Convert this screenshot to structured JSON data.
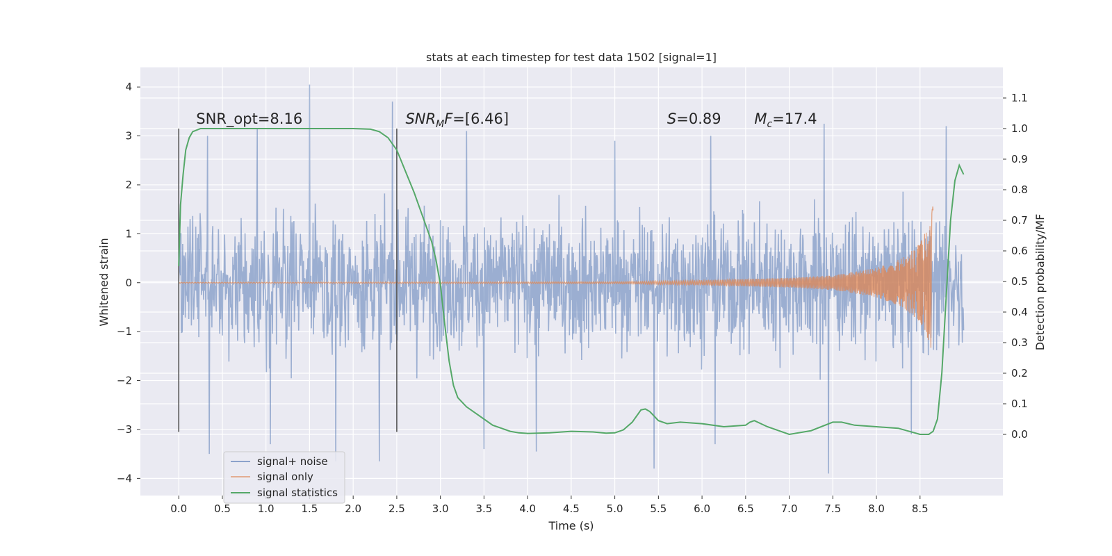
{
  "chart_data": {
    "type": "line",
    "title": "stats at each timestep for test data 1502 [signal=1]",
    "xlabel": "Time (s)",
    "ylabel": "Whitened strain",
    "ylabel_right": "Detection probability/MF",
    "xlim": [
      -0.44,
      9.45
    ],
    "ylim": [
      -4.35,
      4.4
    ],
    "ylim_right": [
      -0.2,
      1.2
    ],
    "x_ticks": [
      "0.0",
      "0.5",
      "1.0",
      "1.5",
      "2.0",
      "2.5",
      "3.0",
      "3.5",
      "4.0",
      "4.5",
      "5.0",
      "5.5",
      "6.0",
      "6.5",
      "7.0",
      "7.5",
      "8.0",
      "8.5"
    ],
    "y_ticks": [
      "4",
      "3",
      "2",
      "1",
      "0",
      "−1",
      "−2",
      "−3",
      "−4"
    ],
    "y_right_ticks": [
      "1.1",
      "1.0",
      "0.9",
      "0.8",
      "0.7",
      "0.6",
      "0.5",
      "0.4",
      "0.3",
      "0.2",
      "0.1",
      "0.0"
    ],
    "grid": true,
    "legend_position": "bottom-left",
    "annotations": [
      {
        "text": "SNR_opt=8.16",
        "x": 0.2,
        "y": 3.25
      },
      {
        "text": "=[6.46]",
        "math": "SNR",
        "sub": "M",
        "tail": "F",
        "x": 2.6,
        "y": 3.25
      },
      {
        "text": "=0.89",
        "math": "S",
        "x": 5.6,
        "y": 3.25
      },
      {
        "text": "=17.4",
        "math": "M",
        "sub": "c",
        "x": 6.6,
        "y": 3.25
      }
    ],
    "vertical_markers": [
      {
        "x": 0.0,
        "ymin": -3.05,
        "ymax": 3.15
      },
      {
        "x": 2.5,
        "ymin": -3.05,
        "ymax": 3.15
      }
    ],
    "series": [
      {
        "name": "signal+ noise",
        "color": "#4c72b0",
        "style": "noise",
        "x_range": [
          0.0,
          9.0
        ],
        "samples": 1800,
        "typical_amplitude": 1.3,
        "peaks": [
          [
            0.33,
            3.0
          ],
          [
            0.9,
            3.15
          ],
          [
            1.5,
            4.05
          ],
          [
            1.8,
            3.0
          ],
          [
            2.45,
            3.7
          ],
          [
            3.3,
            3.1
          ],
          [
            5.0,
            2.9
          ],
          [
            6.1,
            3.0
          ],
          [
            7.4,
            3.25
          ],
          [
            8.8,
            3.2
          ]
        ],
        "troughs": [
          [
            0.35,
            -3.5
          ],
          [
            1.05,
            -3.3
          ],
          [
            1.8,
            -3.65
          ],
          [
            2.3,
            -3.65
          ],
          [
            3.5,
            -3.4
          ],
          [
            4.1,
            -3.45
          ],
          [
            5.45,
            -3.8
          ],
          [
            6.15,
            -3.3
          ],
          [
            7.45,
            -3.9
          ],
          [
            8.4,
            -3.1
          ]
        ]
      },
      {
        "name": "signal only",
        "color": "#dd8452",
        "style": "chirp",
        "x_range": [
          0.0,
          8.65
        ],
        "envelope": [
          [
            0.0,
            0.01
          ],
          [
            5.0,
            0.02
          ],
          [
            6.0,
            0.05
          ],
          [
            7.0,
            0.1
          ],
          [
            7.5,
            0.15
          ],
          [
            8.0,
            0.3
          ],
          [
            8.3,
            0.5
          ],
          [
            8.5,
            0.8
          ],
          [
            8.6,
            1.2
          ],
          [
            8.65,
            1.6
          ]
        ]
      },
      {
        "name": "signal statistics",
        "color": "#55a868",
        "axis": "right",
        "x": [
          0.0,
          0.02,
          0.05,
          0.08,
          0.12,
          0.16,
          0.25,
          0.5,
          1.0,
          1.5,
          2.0,
          2.2,
          2.3,
          2.4,
          2.5,
          2.6,
          2.7,
          2.8,
          2.9,
          2.95,
          3.0,
          3.05,
          3.1,
          3.15,
          3.2,
          3.3,
          3.4,
          3.5,
          3.6,
          3.7,
          3.8,
          3.9,
          4.0,
          4.25,
          4.5,
          4.75,
          4.9,
          5.0,
          5.1,
          5.2,
          5.3,
          5.35,
          5.4,
          5.45,
          5.5,
          5.6,
          5.75,
          6.0,
          6.25,
          6.5,
          6.55,
          6.6,
          6.75,
          7.0,
          7.25,
          7.5,
          7.6,
          7.75,
          8.0,
          8.25,
          8.5,
          8.6,
          8.65,
          8.7,
          8.75,
          8.8,
          8.85,
          8.9,
          8.95,
          9.0
        ],
        "values": [
          0.55,
          0.75,
          0.85,
          0.93,
          0.97,
          0.99,
          1.0,
          1.0,
          1.0,
          1.0,
          1.0,
          0.998,
          0.99,
          0.97,
          0.93,
          0.86,
          0.79,
          0.71,
          0.63,
          0.57,
          0.49,
          0.36,
          0.24,
          0.16,
          0.12,
          0.09,
          0.07,
          0.05,
          0.03,
          0.02,
          0.01,
          0.005,
          0.003,
          0.005,
          0.01,
          0.008,
          0.004,
          0.005,
          0.015,
          0.04,
          0.08,
          0.083,
          0.075,
          0.06,
          0.045,
          0.035,
          0.04,
          0.035,
          0.025,
          0.03,
          0.04,
          0.045,
          0.025,
          0.0,
          0.012,
          0.04,
          0.04,
          0.03,
          0.025,
          0.02,
          0.0,
          0.0,
          0.01,
          0.05,
          0.2,
          0.45,
          0.7,
          0.83,
          0.88,
          0.85
        ]
      }
    ]
  }
}
